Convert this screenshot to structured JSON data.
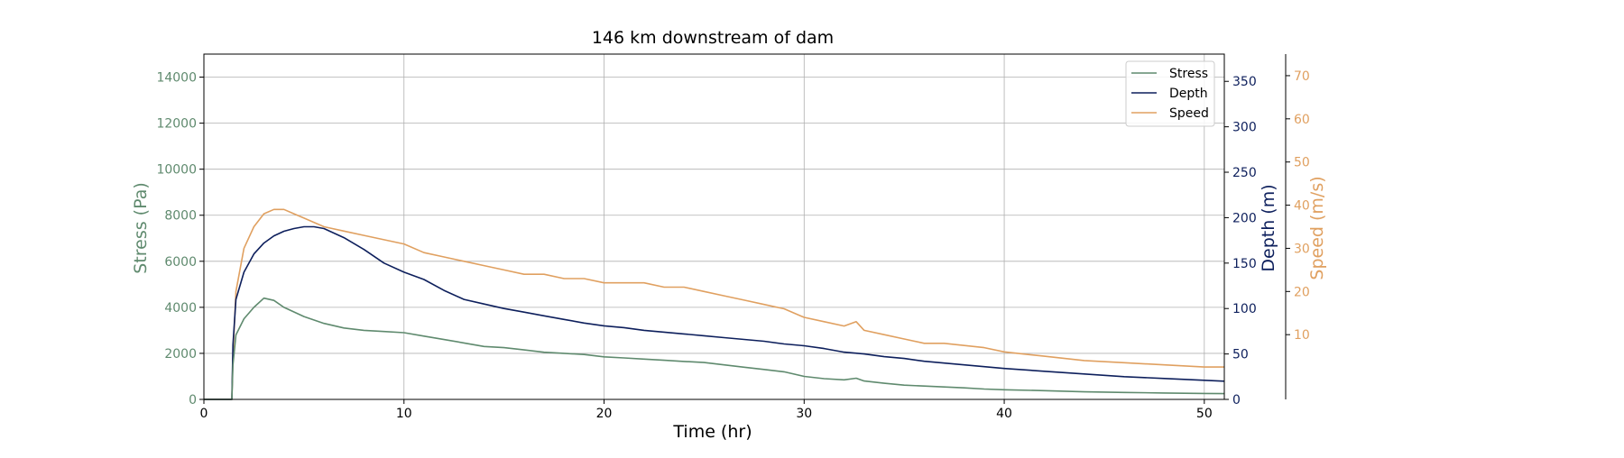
{
  "chart_data": {
    "type": "line",
    "title": "146 km downstream of dam",
    "xlabel": "Time (hr)",
    "xlim": [
      0,
      51
    ],
    "x_ticks": [
      "0",
      "10",
      "20",
      "30",
      "40",
      "50"
    ],
    "grid": true,
    "legend_position": "top-right",
    "axes": {
      "stress": {
        "label": "Stress (Pa)",
        "ylim": [
          0,
          15000
        ],
        "ticks": [
          "0",
          "2000",
          "4000",
          "6000",
          "8000",
          "10000",
          "12000",
          "14000"
        ],
        "color": "#5f8a6e"
      },
      "depth": {
        "label": "Depth (m)",
        "ylim": [
          0,
          380
        ],
        "ticks": [
          "0",
          "50",
          "100",
          "150",
          "200",
          "250",
          "300",
          "350"
        ],
        "color": "#0d1f5c"
      },
      "speed": {
        "label": "Speed (m/s)",
        "ylim": [
          -5,
          75
        ],
        "ticks": [
          "10",
          "20",
          "30",
          "40",
          "50",
          "60",
          "70"
        ],
        "color": "#e0a060"
      }
    },
    "series": [
      {
        "name": "Stress",
        "axis": "stress",
        "color": "#5f8a6e",
        "x": [
          0,
          1.4,
          1.45,
          1.6,
          2.0,
          2.5,
          3.0,
          3.5,
          4.0,
          5.0,
          6.0,
          7.0,
          8.0,
          9.0,
          10.0,
          11.0,
          12.0,
          13.0,
          14.0,
          15.0,
          16.0,
          17.0,
          18.0,
          19.0,
          20.0,
          21.0,
          22.0,
          23.0,
          24.0,
          25.0,
          26.0,
          27.0,
          28.0,
          29.0,
          30.0,
          31.0,
          32.0,
          32.6,
          33.0,
          34.0,
          35.0,
          36.0,
          37.0,
          38.0,
          39.0,
          40.0,
          42.0,
          44.0,
          46.0,
          48.0,
          50.0,
          51.0
        ],
        "y": [
          0,
          0,
          1500,
          2800,
          3500,
          4000,
          4400,
          4300,
          4000,
          3600,
          3300,
          3100,
          3000,
          2950,
          2900,
          2750,
          2600,
          2450,
          2300,
          2250,
          2150,
          2050,
          2000,
          1950,
          1850,
          1800,
          1750,
          1700,
          1650,
          1600,
          1500,
          1400,
          1300,
          1200,
          1000,
          900,
          850,
          920,
          800,
          700,
          620,
          580,
          540,
          500,
          450,
          420,
          380,
          330,
          300,
          280,
          260,
          250
        ]
      },
      {
        "name": "Depth",
        "axis": "depth",
        "color": "#0d1f5c",
        "x": [
          0,
          1.4,
          1.45,
          1.6,
          2.0,
          2.5,
          3.0,
          3.5,
          4.0,
          4.5,
          5.0,
          5.5,
          6.0,
          7.0,
          8.0,
          9.0,
          10.0,
          11.0,
          12.0,
          13.0,
          14.0,
          15.0,
          16.0,
          17.0,
          18.0,
          19.0,
          20.0,
          21.0,
          22.0,
          23.0,
          24.0,
          25.0,
          26.0,
          27.0,
          28.0,
          29.0,
          30.0,
          31.0,
          32.0,
          33.0,
          34.0,
          35.0,
          36.0,
          37.0,
          38.0,
          39.0,
          40.0,
          42.0,
          44.0,
          46.0,
          48.0,
          50.0,
          51.0
        ],
        "y": [
          0,
          0,
          60,
          110,
          140,
          160,
          172,
          180,
          185,
          188,
          190,
          190,
          188,
          178,
          165,
          150,
          140,
          132,
          120,
          110,
          105,
          100,
          96,
          92,
          88,
          84,
          81,
          79,
          76,
          74,
          72,
          70,
          68,
          66,
          64,
          61,
          59,
          56,
          52,
          50,
          47,
          45,
          42,
          40,
          38,
          36,
          34,
          31,
          28,
          25,
          23,
          21,
          20
        ]
      },
      {
        "name": "Speed",
        "axis": "speed",
        "color": "#e0a060",
        "x": [
          0,
          1.4,
          1.45,
          1.6,
          2.0,
          2.5,
          3.0,
          3.5,
          4.0,
          4.5,
          5.0,
          6.0,
          7.0,
          8.0,
          9.0,
          10.0,
          11.0,
          12.0,
          13.0,
          14.0,
          15.0,
          16.0,
          17.0,
          18.0,
          19.0,
          20.0,
          21.0,
          22.0,
          23.0,
          24.0,
          25.0,
          26.0,
          27.0,
          28.0,
          29.0,
          30.0,
          31.0,
          32.0,
          32.6,
          33.0,
          34.0,
          35.0,
          36.0,
          37.0,
          38.0,
          39.0,
          40.0,
          42.0,
          44.0,
          46.0,
          48.0,
          50.0,
          51.0
        ],
        "y": [
          -5,
          -5,
          5,
          20,
          30,
          35,
          38,
          39,
          39,
          38,
          37,
          35,
          34,
          33,
          32,
          31,
          29,
          28,
          27,
          26,
          25,
          24,
          24,
          23,
          23,
          22,
          22,
          22,
          21,
          21,
          20,
          19,
          18,
          17,
          16,
          14,
          13,
          12,
          13,
          11,
          10,
          9,
          8,
          8,
          7.5,
          7,
          6,
          5,
          4,
          3.5,
          3,
          2.5,
          2.5
        ]
      }
    ]
  }
}
